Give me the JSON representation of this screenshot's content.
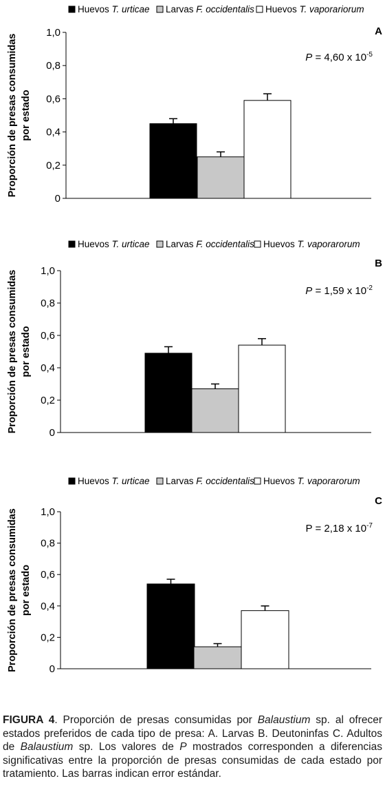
{
  "chart_data": [
    {
      "type": "bar",
      "panel_letter": "A",
      "ylabel": [
        "Proporción de presas consumidas",
        "por estado"
      ],
      "ylim": [
        0,
        1.0
      ],
      "yticks": [
        "0",
        "0,2",
        "0,4",
        "0,6",
        "0,8",
        "1,0"
      ],
      "p_value": {
        "prefix": "P",
        "mid": " = 4,60 x 10",
        "exp": "-5"
      },
      "legend": [
        {
          "pre": "Huevos ",
          "ital": "T. urticae",
          "color": "#000000"
        },
        {
          "pre": "Larvas ",
          "ital": "F. occidentalis",
          "color": "#c8c8c8"
        },
        {
          "pre": "Huevos ",
          "ital": "T. vaporariorum",
          "color": "#ffffff"
        }
      ],
      "series": [
        {
          "value": 0.45,
          "error": 0.03,
          "color": "#000000"
        },
        {
          "value": 0.25,
          "error": 0.03,
          "color": "#c8c8c8"
        },
        {
          "value": 0.59,
          "error": 0.04,
          "color": "#ffffff"
        }
      ]
    },
    {
      "type": "bar",
      "panel_letter": "B",
      "ylabel": [
        "Proporción de presas consumidas",
        "por estado"
      ],
      "ylim": [
        0,
        1.0
      ],
      "yticks": [
        "0",
        "0,2",
        "0,4",
        "0,6",
        "0,8",
        "1,0"
      ],
      "p_value": {
        "prefix": "P",
        "mid": " = 1,59 x 10",
        "exp": "-2"
      },
      "legend": [
        {
          "pre": "Huevos ",
          "ital": "T. urticae",
          "color": "#000000"
        },
        {
          "pre": "Larvas ",
          "ital": "F. occidentalis",
          "color": "#c8c8c8"
        },
        {
          "pre": "Huevos ",
          "ital": "T. vaporarorum",
          "color": "#ffffff"
        }
      ],
      "series": [
        {
          "value": 0.49,
          "error": 0.04,
          "color": "#000000"
        },
        {
          "value": 0.27,
          "error": 0.03,
          "color": "#c8c8c8"
        },
        {
          "value": 0.54,
          "error": 0.04,
          "color": "#ffffff"
        }
      ]
    },
    {
      "type": "bar",
      "panel_letter": "C",
      "ylabel": [
        "Proporción de presas consumidas",
        "por estado"
      ],
      "ylim": [
        0,
        1.0
      ],
      "yticks": [
        "0",
        "0,2",
        "0,4",
        "0,6",
        "0,8",
        "1,0"
      ],
      "p_value": {
        "prefix": "P",
        "mid": " = 2,18 x 10",
        "exp": "-7"
      },
      "legend": [
        {
          "pre": "Huevos ",
          "ital": "T. urticae",
          "color": "#000000"
        },
        {
          "pre": "Larvas ",
          "ital": "F. occidentalis",
          "color": "#c8c8c8"
        },
        {
          "pre": "Huevos ",
          "ital": "T. vaporarorum",
          "color": "#ffffff"
        }
      ],
      "series": [
        {
          "value": 0.54,
          "error": 0.03,
          "color": "#000000"
        },
        {
          "value": 0.14,
          "error": 0.02,
          "color": "#c8c8c8"
        },
        {
          "value": 0.37,
          "error": 0.03,
          "color": "#ffffff"
        }
      ]
    }
  ],
  "caption": {
    "figure_label": "FIGURA 4",
    "t1": ". Proporción de presas consumidas por ",
    "i1": "Balaustium",
    "t2": " sp. al ofrecer estados preferidos de cada tipo de presa: A. Larvas B. Deutoninfas C. Adultos de ",
    "i2": "Balaustium",
    "t3": " sp. Los valores de ",
    "i3": "P",
    "t4": " mostrados corresponden a diferencias significativas entre la proporción de presas consumidas de cada estado por tratamiento. Las barras indican error estándar."
  }
}
